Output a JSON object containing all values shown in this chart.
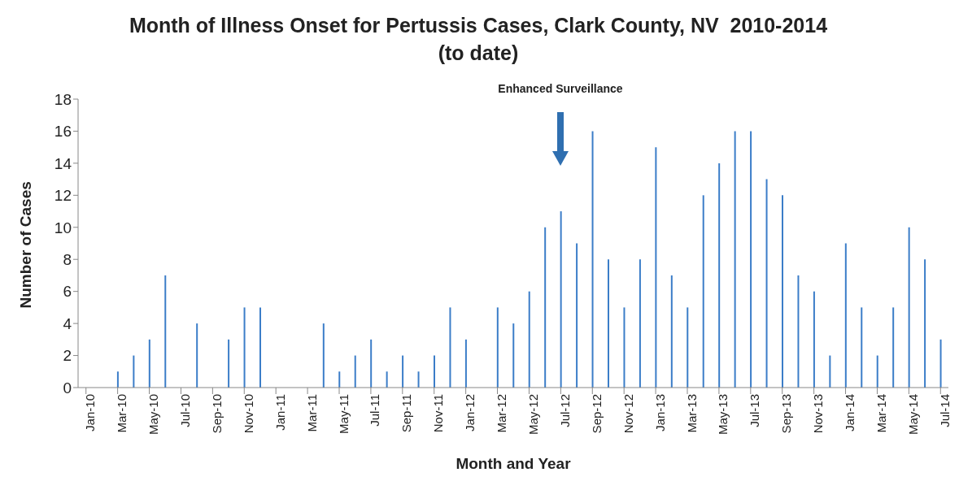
{
  "chart_data": {
    "type": "bar",
    "title": "Month of Illness Onset for Pertussis Cases, Clark County, NV  2010-2014\n(to date)",
    "xlabel": "Month and Year",
    "ylabel": "Number of Cases",
    "categories": [
      "Jan-10",
      null,
      "Mar-10",
      null,
      "May-10",
      null,
      "Jul-10",
      null,
      "Sep-10",
      null,
      "Nov-10",
      null,
      "Jan-11",
      null,
      "Mar-11",
      null,
      "May-11",
      null,
      "Jul-11",
      null,
      "Sep-11",
      null,
      "Nov-11",
      null,
      "Jan-12",
      null,
      "Mar-12",
      null,
      "May-12",
      null,
      "Jul-12",
      null,
      "Sep-12",
      null,
      "Nov-12",
      null,
      "Jan-13",
      null,
      "Mar-13",
      null,
      "May-13",
      null,
      "Jul-13",
      null,
      "Sep-13",
      null,
      "Nov-13",
      null,
      "Jan-14",
      null,
      "Mar-14",
      null,
      "May-14",
      null,
      "Jul-14"
    ],
    "values": [
      0,
      0,
      1,
      2,
      3,
      7,
      0,
      4,
      0,
      3,
      5,
      5,
      0,
      0,
      0,
      4,
      1,
      2,
      3,
      1,
      2,
      1,
      2,
      5,
      3,
      0,
      5,
      4,
      6,
      10,
      11,
      9,
      16,
      8,
      5,
      8,
      15,
      7,
      5,
      12,
      14,
      16,
      16,
      13,
      12,
      7,
      6,
      2,
      9,
      5,
      2,
      5,
      10,
      8,
      3
    ],
    "color": "#3b7dc8",
    "ylim": [
      0,
      18
    ],
    "yticks": [
      0,
      2,
      4,
      6,
      8,
      10,
      12,
      14,
      16,
      18
    ],
    "grid": false,
    "legend": false,
    "annotations": [
      "Enhanced Surveillance"
    ]
  }
}
